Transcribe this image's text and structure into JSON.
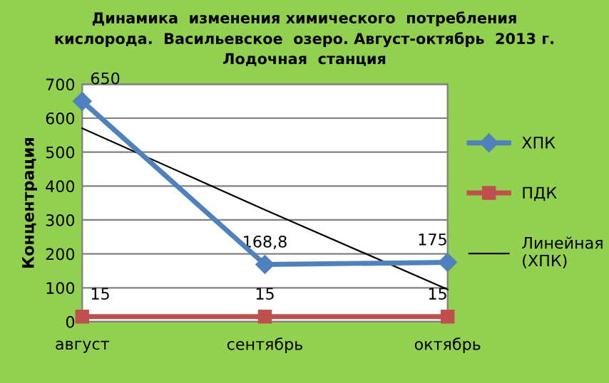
{
  "chart_data": {
    "type": "line",
    "title": "Динамика  изменения химического  потребления\nкислорода.  Васильевское  озеро. Август-октябрь  2013 г.\nЛодочная  станция",
    "ylabel": "Концентрация",
    "categories": [
      "август",
      "сентябрь",
      "октябрь"
    ],
    "series": [
      {
        "name": "ХПК",
        "color": "#4f81bd",
        "values": [
          650,
          168.8,
          175
        ],
        "marker": "diamond",
        "value_labels": [
          "650",
          "168,8",
          "175"
        ]
      },
      {
        "name": "ПДК",
        "color": "#c0504d",
        "values": [
          15,
          15,
          15
        ],
        "marker": "square",
        "value_labels": [
          "15",
          "15",
          "15"
        ]
      },
      {
        "name": "Линейная\n(ХПК)",
        "color": "#000000",
        "values": [
          570,
          330,
          95
        ],
        "marker": "none"
      }
    ],
    "ylim": [
      0,
      700
    ],
    "yticks": [
      0,
      100,
      200,
      300,
      400,
      500,
      600,
      700
    ],
    "grid": "y",
    "legend": "right",
    "line_style": "solid"
  }
}
